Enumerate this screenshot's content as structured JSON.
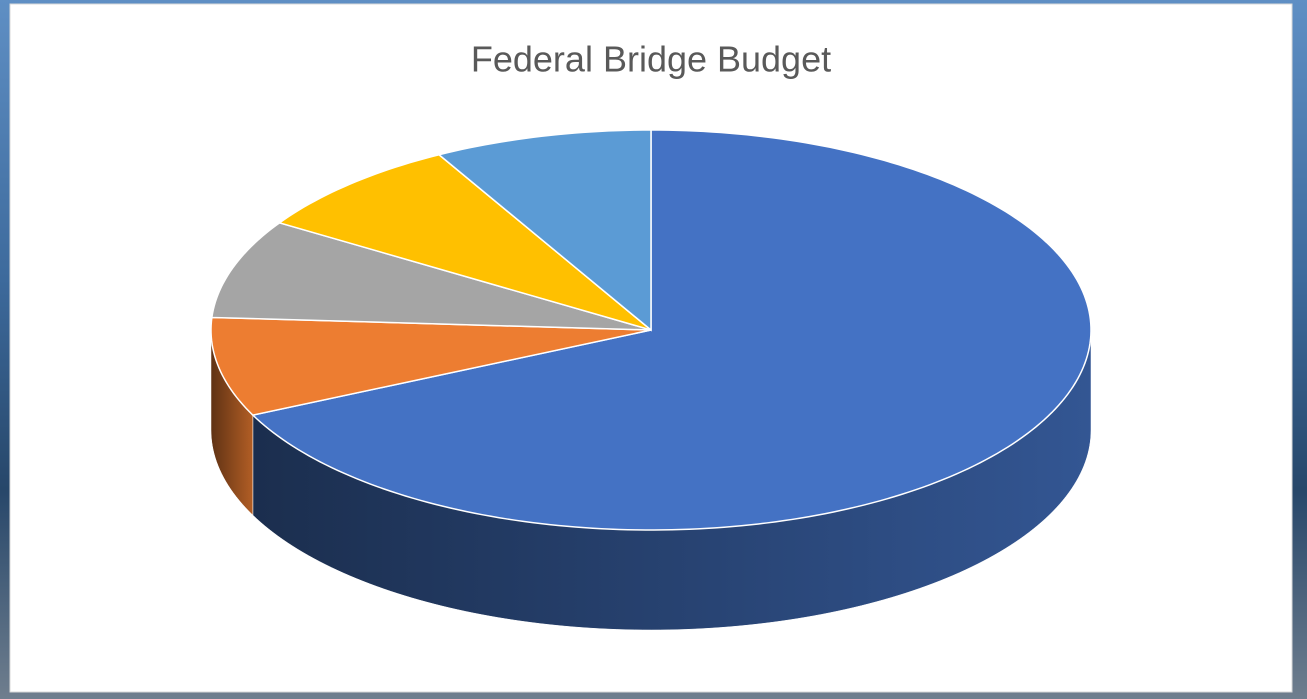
{
  "chart_data": {
    "type": "pie",
    "title": "Federal Bridge Budget",
    "values": [
      68,
      8,
      8,
      8,
      8
    ],
    "colors": [
      "#4472c4",
      "#ed7d31",
      "#a5a5a5",
      "#ffc000",
      "#5b9bd5"
    ]
  }
}
